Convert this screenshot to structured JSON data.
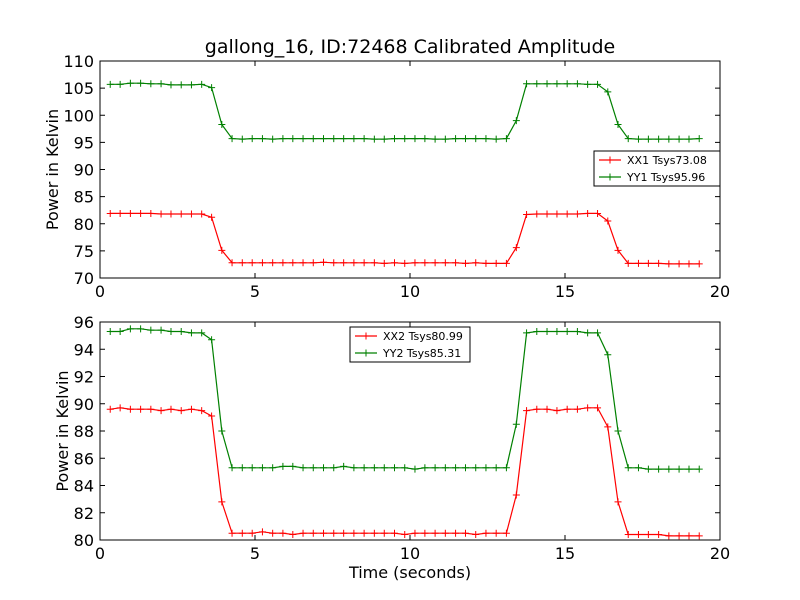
{
  "title": "gallong_16, ID:72468 Calibrated Amplitude",
  "colors": {
    "red": "#ff0000",
    "green": "#008000",
    "frame": "#000000",
    "background": "#ffffff"
  },
  "chart_data": [
    {
      "type": "line",
      "ylabel": "Power in Kelvin",
      "xlabel": "",
      "xlim": [
        0,
        20
      ],
      "ylim": [
        70,
        110
      ],
      "xticks": [
        "0",
        "5",
        "10",
        "15",
        "20"
      ],
      "yticks": [
        "70",
        "75",
        "80",
        "85",
        "90",
        "95",
        "100",
        "105",
        "110"
      ],
      "grid": false,
      "legend_position": "center-right",
      "series": [
        {
          "name": "XX1 Tsys73.08",
          "color": "#ff0000",
          "marker": "+",
          "x": [
            0.33,
            0.65,
            0.98,
            1.31,
            1.64,
            1.97,
            2.29,
            2.62,
            2.95,
            3.28,
            3.6,
            3.93,
            4.26,
            4.59,
            4.91,
            5.24,
            5.57,
            5.9,
            6.22,
            6.55,
            6.88,
            7.21,
            7.54,
            7.86,
            8.19,
            8.52,
            8.85,
            9.17,
            9.5,
            9.83,
            10.16,
            10.48,
            10.81,
            11.14,
            11.47,
            11.79,
            12.12,
            12.45,
            12.78,
            13.11,
            13.43,
            13.76,
            14.09,
            14.42,
            14.74,
            15.07,
            15.4,
            15.73,
            16.05,
            16.38,
            16.71,
            17.04,
            17.37,
            17.69,
            18.02,
            18.35,
            18.68,
            19.0,
            19.33
          ],
          "y": [
            81.9,
            81.9,
            81.9,
            81.9,
            81.9,
            81.8,
            81.8,
            81.8,
            81.8,
            81.8,
            81.2,
            75.1,
            72.8,
            72.8,
            72.8,
            72.8,
            72.8,
            72.8,
            72.8,
            72.8,
            72.8,
            72.9,
            72.8,
            72.8,
            72.8,
            72.8,
            72.8,
            72.7,
            72.8,
            72.7,
            72.8,
            72.8,
            72.8,
            72.8,
            72.8,
            72.7,
            72.8,
            72.7,
            72.7,
            72.7,
            75.6,
            81.7,
            81.8,
            81.8,
            81.8,
            81.8,
            81.8,
            81.9,
            81.9,
            80.5,
            75.1,
            72.7,
            72.7,
            72.7,
            72.7,
            72.6,
            72.6,
            72.6,
            72.6
          ]
        },
        {
          "name": "YY1 Tsys95.96",
          "color": "#008000",
          "marker": "+",
          "x": [
            0.33,
            0.65,
            0.98,
            1.31,
            1.64,
            1.97,
            2.29,
            2.62,
            2.95,
            3.28,
            3.6,
            3.93,
            4.26,
            4.59,
            4.91,
            5.24,
            5.57,
            5.9,
            6.22,
            6.55,
            6.88,
            7.21,
            7.54,
            7.86,
            8.19,
            8.52,
            8.85,
            9.17,
            9.5,
            9.83,
            10.16,
            10.48,
            10.81,
            11.14,
            11.47,
            11.79,
            12.12,
            12.45,
            12.78,
            13.11,
            13.43,
            13.76,
            14.09,
            14.42,
            14.74,
            15.07,
            15.4,
            15.73,
            16.05,
            16.38,
            16.71,
            17.04,
            17.37,
            17.69,
            18.02,
            18.35,
            18.68,
            19.0,
            19.33
          ],
          "y": [
            105.7,
            105.7,
            105.9,
            105.9,
            105.8,
            105.8,
            105.6,
            105.6,
            105.6,
            105.7,
            105.1,
            98.3,
            95.7,
            95.6,
            95.7,
            95.7,
            95.6,
            95.7,
            95.7,
            95.7,
            95.7,
            95.7,
            95.7,
            95.7,
            95.7,
            95.7,
            95.6,
            95.6,
            95.7,
            95.7,
            95.7,
            95.7,
            95.6,
            95.6,
            95.7,
            95.7,
            95.7,
            95.7,
            95.6,
            95.7,
            99.0,
            105.8,
            105.8,
            105.8,
            105.8,
            105.8,
            105.8,
            105.7,
            105.7,
            104.3,
            98.3,
            95.7,
            95.6,
            95.6,
            95.6,
            95.6,
            95.6,
            95.6,
            95.7
          ]
        }
      ]
    },
    {
      "type": "line",
      "ylabel": "Power in Kelvin",
      "xlabel": "Time (seconds)",
      "xlim": [
        0,
        20
      ],
      "ylim": [
        80,
        96
      ],
      "xticks": [
        "0",
        "5",
        "10",
        "15",
        "20"
      ],
      "yticks": [
        "80",
        "82",
        "84",
        "86",
        "88",
        "90",
        "92",
        "94",
        "96"
      ],
      "grid": false,
      "legend_position": "upper-center",
      "series": [
        {
          "name": "XX2 Tsys80.99",
          "color": "#ff0000",
          "marker": "+",
          "x": [
            0.33,
            0.65,
            0.98,
            1.31,
            1.64,
            1.97,
            2.29,
            2.62,
            2.95,
            3.28,
            3.6,
            3.93,
            4.26,
            4.59,
            4.91,
            5.24,
            5.57,
            5.9,
            6.22,
            6.55,
            6.88,
            7.21,
            7.54,
            7.86,
            8.19,
            8.52,
            8.85,
            9.17,
            9.5,
            9.83,
            10.16,
            10.48,
            10.81,
            11.14,
            11.47,
            11.79,
            12.12,
            12.45,
            12.78,
            13.11,
            13.43,
            13.76,
            14.09,
            14.42,
            14.74,
            15.07,
            15.4,
            15.73,
            16.05,
            16.38,
            16.71,
            17.04,
            17.37,
            17.69,
            18.02,
            18.35,
            18.68,
            19.0,
            19.33
          ],
          "y": [
            89.6,
            89.7,
            89.6,
            89.6,
            89.6,
            89.5,
            89.6,
            89.5,
            89.6,
            89.5,
            89.1,
            82.8,
            80.5,
            80.5,
            80.5,
            80.6,
            80.5,
            80.5,
            80.4,
            80.5,
            80.5,
            80.5,
            80.5,
            80.5,
            80.5,
            80.5,
            80.5,
            80.5,
            80.5,
            80.4,
            80.5,
            80.5,
            80.5,
            80.5,
            80.5,
            80.5,
            80.4,
            80.5,
            80.5,
            80.5,
            83.3,
            89.5,
            89.6,
            89.6,
            89.5,
            89.6,
            89.6,
            89.7,
            89.7,
            88.3,
            82.8,
            80.4,
            80.4,
            80.4,
            80.4,
            80.3,
            80.3,
            80.3,
            80.3
          ]
        },
        {
          "name": "YY2 Tsys85.31",
          "color": "#008000",
          "marker": "+",
          "x": [
            0.33,
            0.65,
            0.98,
            1.31,
            1.64,
            1.97,
            2.29,
            2.62,
            2.95,
            3.28,
            3.6,
            3.93,
            4.26,
            4.59,
            4.91,
            5.24,
            5.57,
            5.9,
            6.22,
            6.55,
            6.88,
            7.21,
            7.54,
            7.86,
            8.19,
            8.52,
            8.85,
            9.17,
            9.5,
            9.83,
            10.16,
            10.48,
            10.81,
            11.14,
            11.47,
            11.79,
            12.12,
            12.45,
            12.78,
            13.11,
            13.43,
            13.76,
            14.09,
            14.42,
            14.74,
            15.07,
            15.4,
            15.73,
            16.05,
            16.38,
            16.71,
            17.04,
            17.37,
            17.69,
            18.02,
            18.35,
            18.68,
            19.0,
            19.33
          ],
          "y": [
            95.3,
            95.3,
            95.5,
            95.5,
            95.4,
            95.4,
            95.3,
            95.3,
            95.2,
            95.2,
            94.7,
            88.0,
            85.3,
            85.3,
            85.3,
            85.3,
            85.3,
            85.4,
            85.4,
            85.3,
            85.3,
            85.3,
            85.3,
            85.4,
            85.3,
            85.3,
            85.3,
            85.3,
            85.3,
            85.3,
            85.2,
            85.3,
            85.3,
            85.3,
            85.3,
            85.3,
            85.3,
            85.3,
            85.3,
            85.3,
            88.5,
            95.2,
            95.3,
            95.3,
            95.3,
            95.3,
            95.3,
            95.2,
            95.2,
            93.6,
            88.0,
            85.3,
            85.3,
            85.2,
            85.2,
            85.2,
            85.2,
            85.2,
            85.2
          ]
        }
      ]
    }
  ]
}
